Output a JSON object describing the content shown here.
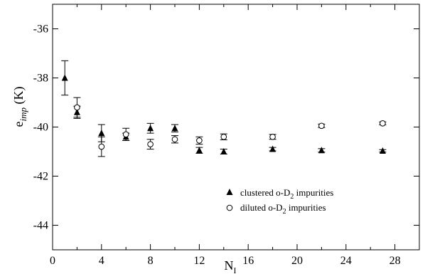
{
  "chart_data": {
    "type": "scatter",
    "xlabel": {
      "main": "N",
      "sub": "I"
    },
    "ylabel": {
      "main": "e",
      "sub": "imp",
      "unit": " (K)"
    },
    "xlim": [
      0,
      30
    ],
    "ylim": [
      -45,
      -35
    ],
    "xticks": [
      0,
      4,
      8,
      12,
      16,
      20,
      24,
      28
    ],
    "yticks": [
      -44,
      -42,
      -40,
      -38,
      -36
    ],
    "grid": false,
    "legend": "lower-right",
    "series": [
      {
        "name": {
          "pre": "clustered o-D",
          "sub": "2",
          "post": " impurities"
        },
        "marker": "filled-triangle",
        "x": [
          1,
          2,
          4,
          6,
          8,
          10,
          12,
          14,
          18,
          22,
          27
        ],
        "y": [
          -38.0,
          -39.4,
          -40.25,
          -40.4,
          -40.05,
          -40.05,
          -40.95,
          -41.0,
          -40.9,
          -40.95,
          -40.97
        ],
        "err": [
          0.7,
          0.25,
          0.35,
          0.15,
          0.2,
          0.15,
          0.12,
          0.1,
          0.07,
          0.07,
          0.05
        ]
      },
      {
        "name": {
          "pre": "diluted o-D",
          "sub": "2",
          "post": " impurities"
        },
        "marker": "open-circle",
        "x": [
          2,
          4,
          6,
          8,
          10,
          12,
          14,
          18,
          22,
          27
        ],
        "y": [
          -39.2,
          -40.8,
          -40.3,
          -40.7,
          -40.5,
          -40.55,
          -40.4,
          -40.4,
          -39.95,
          -39.85
        ],
        "err": [
          0.4,
          0.4,
          0.25,
          0.2,
          0.15,
          0.15,
          0.12,
          0.1,
          0.07,
          0.06
        ]
      }
    ]
  }
}
